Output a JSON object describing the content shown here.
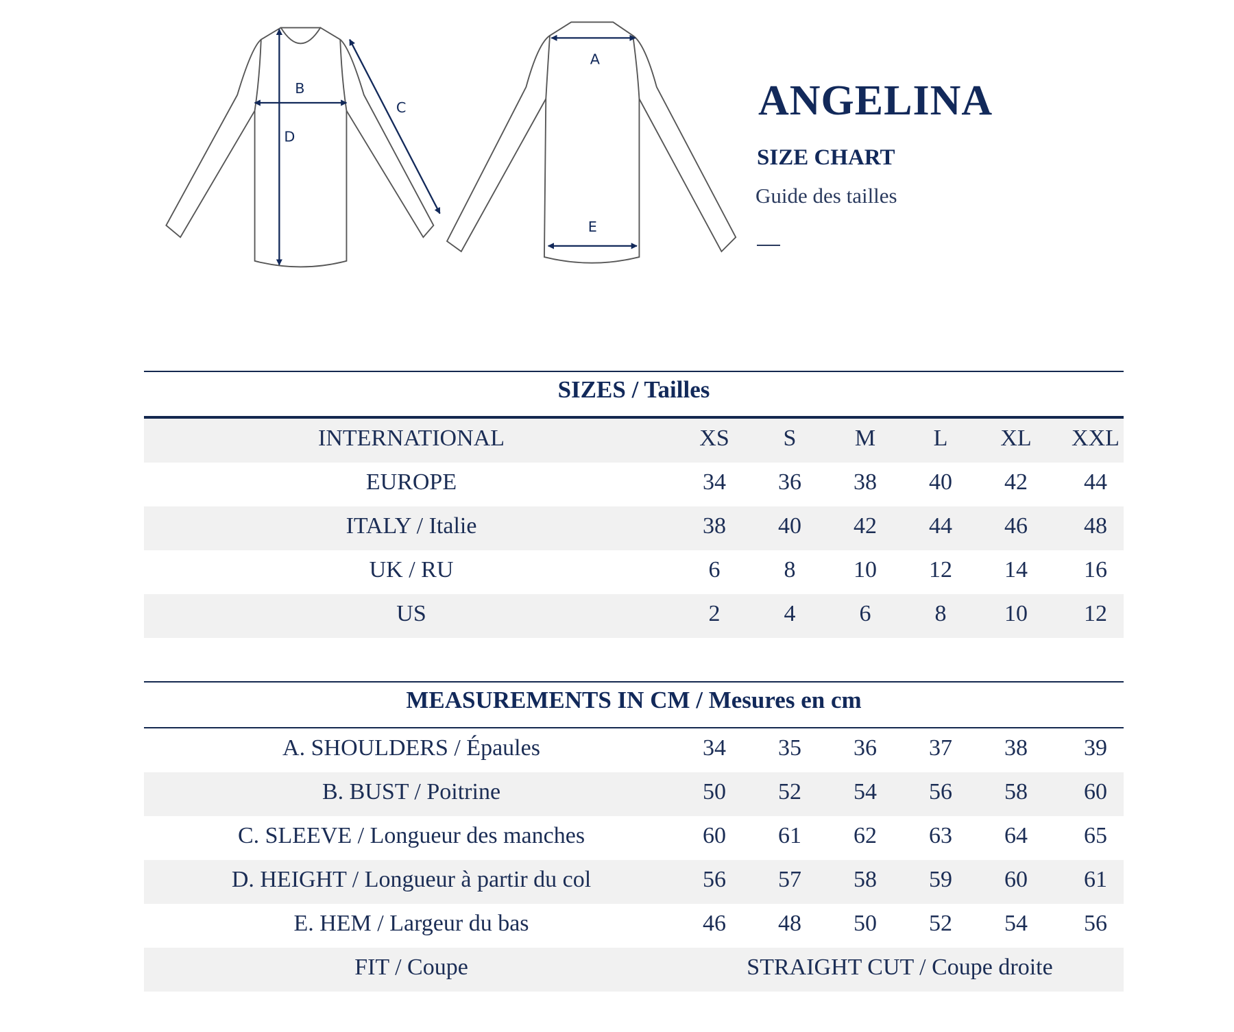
{
  "header": {
    "title": "ANGELINA",
    "subtitle": "SIZE CHART",
    "subtitle_fr": "Guide des tailles",
    "dash": "—"
  },
  "diagram": {
    "front_labels": {
      "b": "B",
      "c": "C",
      "d": "D"
    },
    "back_labels": {
      "a": "A",
      "e": "E"
    }
  },
  "colors": {
    "accent": "#12295a",
    "row_alt": "#f1f1f1"
  },
  "sizes_table": {
    "heading": "SIZES / Tailles",
    "rows": [
      {
        "label": "INTERNATIONAL",
        "values": [
          "XS",
          "S",
          "M",
          "L",
          "XL",
          "XXL"
        ]
      },
      {
        "label": "EUROPE",
        "values": [
          "34",
          "36",
          "38",
          "40",
          "42",
          "44"
        ]
      },
      {
        "label": "ITALY / Italie",
        "values": [
          "38",
          "40",
          "42",
          "44",
          "46",
          "48"
        ]
      },
      {
        "label": "UK / RU",
        "values": [
          "6",
          "8",
          "10",
          "12",
          "14",
          "16"
        ]
      },
      {
        "label": "US",
        "values": [
          "2",
          "4",
          "6",
          "8",
          "10",
          "12"
        ]
      }
    ]
  },
  "measurements_table": {
    "heading": "MEASUREMENTS IN CM / Mesures en cm",
    "rows": [
      {
        "label": "A. SHOULDERS / Épaules",
        "values": [
          "34",
          "35",
          "36",
          "37",
          "38",
          "39"
        ]
      },
      {
        "label": "B. BUST / Poitrine",
        "values": [
          "50",
          "52",
          "54",
          "56",
          "58",
          "60"
        ]
      },
      {
        "label": "C. SLEEVE / Longueur des manches",
        "values": [
          "60",
          "61",
          "62",
          "63",
          "64",
          "65"
        ]
      },
      {
        "label": "D. HEIGHT / Longueur à partir du col",
        "values": [
          "56",
          "57",
          "58",
          "59",
          "60",
          "61"
        ]
      },
      {
        "label": "E. HEM / Largeur du bas",
        "values": [
          "46",
          "48",
          "50",
          "52",
          "54",
          "56"
        ]
      }
    ],
    "fit": {
      "label": "FIT / Coupe",
      "value": "STRAIGHT CUT / Coupe droite"
    }
  }
}
